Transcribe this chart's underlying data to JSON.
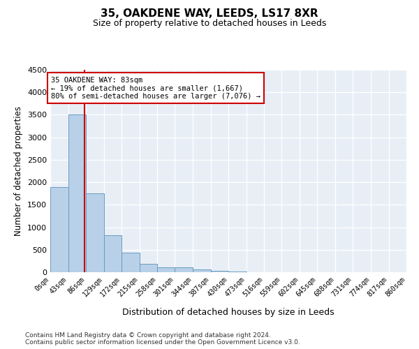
{
  "title": "35, OAKDENE WAY, LEEDS, LS17 8XR",
  "subtitle": "Size of property relative to detached houses in Leeds",
  "xlabel": "Distribution of detached houses by size in Leeds",
  "ylabel": "Number of detached properties",
  "bar_color": "#b8d0e8",
  "bar_edge_color": "#6a9dbf",
  "background_color": "#e8eef6",
  "grid_color": "#ffffff",
  "bin_edges": [
    0,
    43,
    86,
    129,
    172,
    215,
    258,
    301,
    344,
    387,
    430,
    473,
    516,
    559,
    602,
    645,
    688,
    731,
    774,
    817,
    860
  ],
  "bin_labels": [
    "0sqm",
    "43sqm",
    "86sqm",
    "129sqm",
    "172sqm",
    "215sqm",
    "258sqm",
    "301sqm",
    "344sqm",
    "387sqm",
    "430sqm",
    "473sqm",
    "516sqm",
    "559sqm",
    "602sqm",
    "645sqm",
    "688sqm",
    "731sqm",
    "774sqm",
    "817sqm",
    "860sqm"
  ],
  "bar_heights": [
    1900,
    3500,
    1750,
    820,
    430,
    190,
    110,
    105,
    55,
    25,
    10,
    0,
    0,
    0,
    0,
    0,
    0,
    0,
    0,
    0
  ],
  "property_size": 83,
  "red_line_color": "#cc0000",
  "annotation_line1": "35 OAKDENE WAY: 83sqm",
  "annotation_line2": "← 19% of detached houses are smaller (1,667)",
  "annotation_line3": "80% of semi-detached houses are larger (7,076) →",
  "ylim": [
    0,
    4500
  ],
  "yticks": [
    0,
    500,
    1000,
    1500,
    2000,
    2500,
    3000,
    3500,
    4000,
    4500
  ],
  "footnote1": "Contains HM Land Registry data © Crown copyright and database right 2024.",
  "footnote2": "Contains public sector information licensed under the Open Government Licence v3.0.",
  "figsize": [
    6.0,
    5.0
  ],
  "dpi": 100
}
